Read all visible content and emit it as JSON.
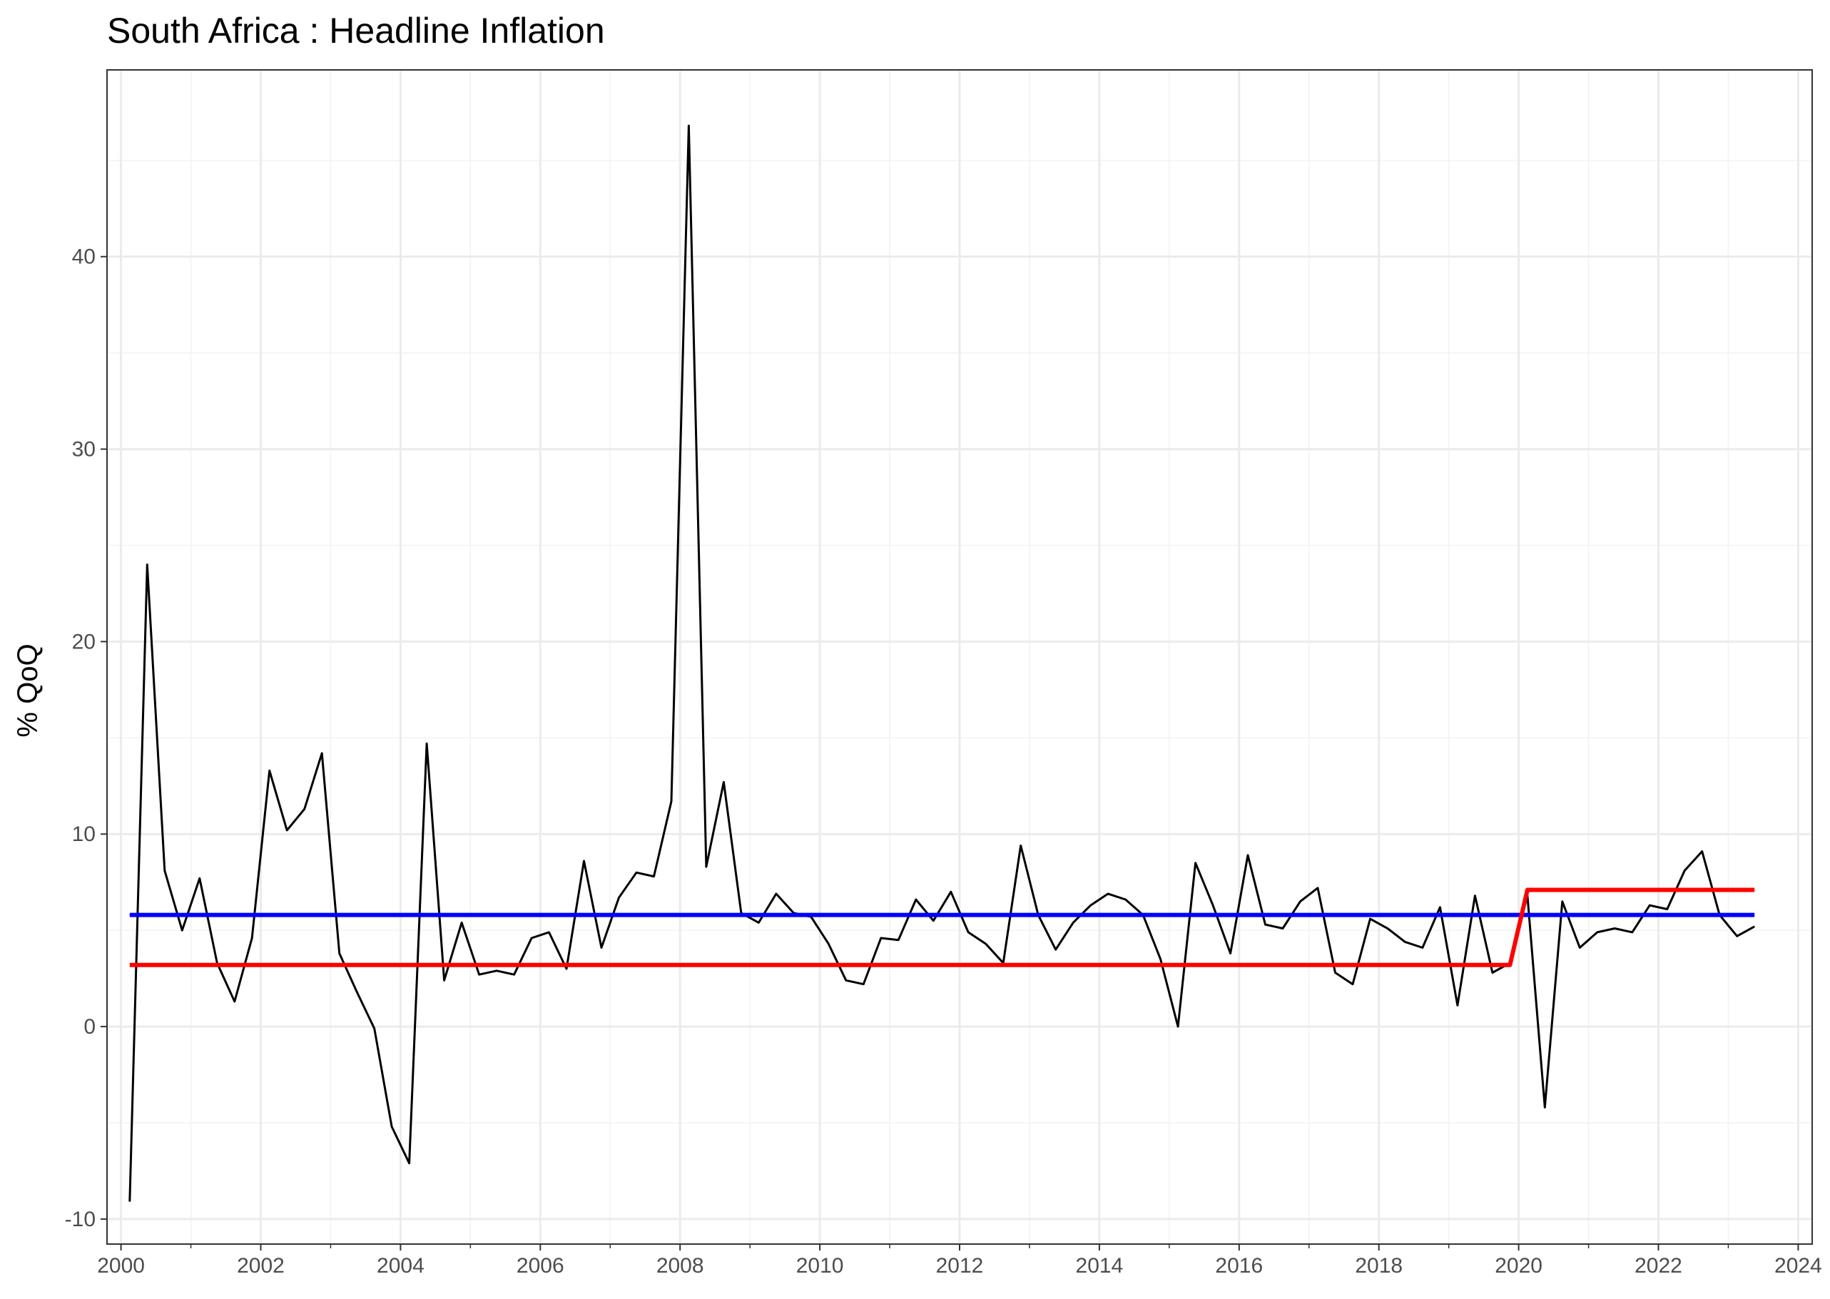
{
  "chart_data": {
    "type": "line",
    "title": "South Africa : Headline Inflation",
    "ylabel": "% QoQ",
    "xlabel": "",
    "xlim": [
      1999.8,
      2024.2
    ],
    "ylim": [
      -11.3,
      49.7
    ],
    "x_ticks": [
      2000,
      2002,
      2004,
      2006,
      2008,
      2010,
      2012,
      2014,
      2016,
      2018,
      2020,
      2022,
      2024
    ],
    "y_ticks": [
      -10,
      0,
      10,
      20,
      30,
      40
    ],
    "grid": true,
    "legend": "none",
    "series": [
      {
        "color": "#000000",
        "points": [
          [
            2000.125,
            -9.1
          ],
          [
            2000.375,
            24.0
          ],
          [
            2000.625,
            8.1
          ],
          [
            2000.875,
            5.0
          ],
          [
            2001.125,
            7.7
          ],
          [
            2001.375,
            3.3
          ],
          [
            2001.625,
            1.3
          ],
          [
            2001.875,
            4.6
          ],
          [
            2002.125,
            13.3
          ],
          [
            2002.375,
            10.2
          ],
          [
            2002.625,
            11.3
          ],
          [
            2002.875,
            14.2
          ],
          [
            2003.125,
            3.8
          ],
          [
            2003.375,
            1.8
          ],
          [
            2003.625,
            -0.1
          ],
          [
            2003.875,
            -5.2
          ],
          [
            2004.125,
            -7.1
          ],
          [
            2004.375,
            14.7
          ],
          [
            2004.625,
            2.4
          ],
          [
            2004.875,
            5.4
          ],
          [
            2005.125,
            2.7
          ],
          [
            2005.375,
            2.9
          ],
          [
            2005.625,
            2.7
          ],
          [
            2005.875,
            4.6
          ],
          [
            2006.125,
            4.9
          ],
          [
            2006.375,
            3.0
          ],
          [
            2006.625,
            8.6
          ],
          [
            2006.875,
            4.1
          ],
          [
            2007.125,
            6.7
          ],
          [
            2007.375,
            8.0
          ],
          [
            2007.625,
            7.8
          ],
          [
            2007.875,
            11.7
          ],
          [
            2008.125,
            46.8
          ],
          [
            2008.375,
            8.3
          ],
          [
            2008.625,
            12.7
          ],
          [
            2008.875,
            5.9
          ],
          [
            2009.125,
            5.4
          ],
          [
            2009.375,
            6.9
          ],
          [
            2009.625,
            5.9
          ],
          [
            2009.875,
            5.7
          ],
          [
            2010.125,
            4.3
          ],
          [
            2010.375,
            2.4
          ],
          [
            2010.625,
            2.2
          ],
          [
            2010.875,
            4.6
          ],
          [
            2011.125,
            4.5
          ],
          [
            2011.375,
            6.6
          ],
          [
            2011.625,
            5.5
          ],
          [
            2011.875,
            7.0
          ],
          [
            2012.125,
            4.9
          ],
          [
            2012.375,
            4.3
          ],
          [
            2012.625,
            3.3
          ],
          [
            2012.875,
            9.4
          ],
          [
            2013.125,
            5.8
          ],
          [
            2013.375,
            4.0
          ],
          [
            2013.625,
            5.4
          ],
          [
            2013.875,
            6.3
          ],
          [
            2014.125,
            6.9
          ],
          [
            2014.375,
            6.6
          ],
          [
            2014.625,
            5.8
          ],
          [
            2014.875,
            3.5
          ],
          [
            2015.125,
            0.0
          ],
          [
            2015.375,
            8.5
          ],
          [
            2015.625,
            6.3
          ],
          [
            2015.875,
            3.8
          ],
          [
            2016.125,
            8.9
          ],
          [
            2016.375,
            5.3
          ],
          [
            2016.625,
            5.1
          ],
          [
            2016.875,
            6.5
          ],
          [
            2017.125,
            7.2
          ],
          [
            2017.375,
            2.8
          ],
          [
            2017.625,
            2.2
          ],
          [
            2017.875,
            5.6
          ],
          [
            2018.125,
            5.1
          ],
          [
            2018.375,
            4.4
          ],
          [
            2018.625,
            4.1
          ],
          [
            2018.875,
            6.2
          ],
          [
            2019.125,
            1.1
          ],
          [
            2019.375,
            6.8
          ],
          [
            2019.625,
            2.8
          ],
          [
            2019.875,
            3.3
          ],
          [
            2020.125,
            6.8
          ],
          [
            2020.375,
            -4.2
          ],
          [
            2020.625,
            6.5
          ],
          [
            2020.875,
            4.1
          ],
          [
            2021.125,
            4.9
          ],
          [
            2021.375,
            5.1
          ],
          [
            2021.625,
            4.9
          ],
          [
            2021.875,
            6.3
          ],
          [
            2022.125,
            6.1
          ],
          [
            2022.375,
            8.1
          ],
          [
            2022.625,
            9.1
          ],
          [
            2022.875,
            5.8
          ],
          [
            2023.125,
            4.7
          ],
          [
            2023.375,
            5.2
          ]
        ]
      },
      {
        "color": "#0000ff",
        "points": [
          [
            2000.125,
            5.8
          ],
          [
            2023.375,
            5.8
          ]
        ]
      },
      {
        "color": "#ff0000",
        "points": [
          [
            2000.125,
            3.2
          ],
          [
            2019.875,
            3.2
          ],
          [
            2020.125,
            7.1
          ],
          [
            2023.375,
            7.1
          ]
        ]
      }
    ]
  }
}
